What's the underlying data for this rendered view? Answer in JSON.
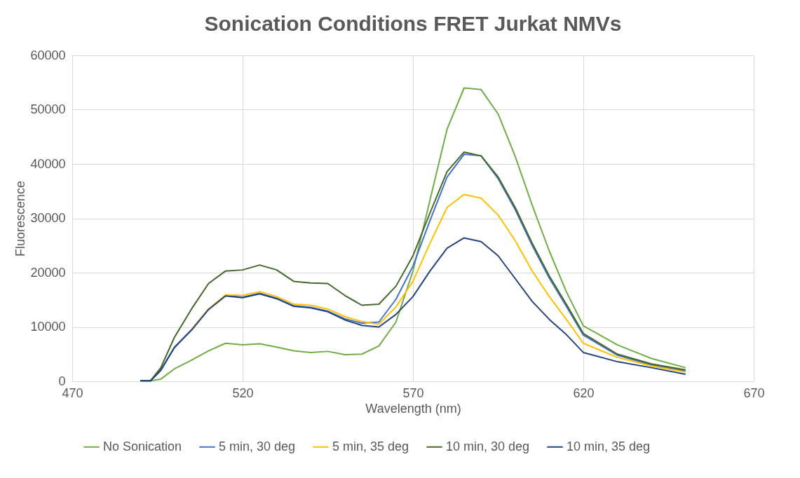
{
  "chart_data": {
    "type": "line",
    "title": "Sonication Conditions FRET Jurkat NMVs",
    "xlabel": "Wavelength (nm)",
    "ylabel": "Fluorescence",
    "x": [
      490,
      493,
      496,
      500,
      505,
      510,
      515,
      520,
      525,
      530,
      535,
      540,
      545,
      550,
      555,
      560,
      565,
      570,
      575,
      580,
      585,
      590,
      595,
      600,
      605,
      610,
      615,
      620,
      630,
      640,
      650
    ],
    "xlim": [
      470,
      670
    ],
    "xticks": [
      470,
      520,
      570,
      620,
      670
    ],
    "ylim": [
      0,
      60000
    ],
    "yticks": [
      0,
      10000,
      20000,
      30000,
      40000,
      50000,
      60000
    ],
    "grid": true,
    "legend": "bottom",
    "marker": "none",
    "line_style": "solid",
    "series": [
      {
        "name": "No Sonication",
        "color": "#70ad47",
        "values": [
          100,
          100,
          400,
          2300,
          3900,
          5600,
          7000,
          6700,
          6900,
          6300,
          5600,
          5300,
          5500,
          4900,
          5000,
          6500,
          10900,
          20300,
          33400,
          46400,
          54000,
          53700,
          49200,
          41400,
          32400,
          24000,
          16500,
          10200,
          6700,
          4200,
          2500
        ]
      },
      {
        "name": "5 min, 30 deg",
        "color": "#4472c4",
        "values": [
          100,
          100,
          2100,
          6300,
          9500,
          13300,
          15800,
          15500,
          16200,
          15300,
          13900,
          13600,
          12900,
          11500,
          10700,
          10900,
          15100,
          21200,
          29600,
          37600,
          41800,
          41500,
          37300,
          31600,
          25000,
          19000,
          13800,
          8500,
          4800,
          3000,
          1900
        ]
      },
      {
        "name": "5 min, 35 deg",
        "color": "#ffc000",
        "values": [
          null,
          null,
          null,
          null,
          9500,
          13300,
          15900,
          15800,
          16500,
          15600,
          14200,
          14000,
          13300,
          11900,
          11000,
          10500,
          13700,
          18400,
          25400,
          32000,
          34400,
          33700,
          30600,
          25900,
          20300,
          15600,
          11400,
          7000,
          4400,
          2800,
          1700
        ]
      },
      {
        "name": "10 min, 30 deg",
        "color": "#44682c",
        "values": [
          100,
          100,
          2500,
          8100,
          13300,
          18000,
          20300,
          20500,
          21400,
          20500,
          18400,
          18100,
          18000,
          15800,
          14000,
          14200,
          17500,
          23100,
          31000,
          38600,
          42200,
          41500,
          37600,
          32000,
          25400,
          19400,
          14200,
          8800,
          5000,
          3200,
          2100
        ]
      },
      {
        "name": "10 min, 35 deg",
        "color": "#264478",
        "values": [
          100,
          100,
          2000,
          6200,
          9400,
          13200,
          15700,
          15400,
          16100,
          15200,
          13800,
          13500,
          12800,
          11300,
          10300,
          10000,
          12300,
          15600,
          20300,
          24500,
          26400,
          25700,
          23100,
          18900,
          14700,
          11400,
          8600,
          5300,
          3600,
          2500,
          1300
        ]
      }
    ]
  }
}
